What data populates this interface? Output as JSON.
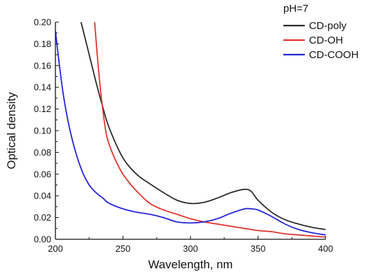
{
  "chart_data": {
    "type": "line",
    "title": "",
    "xlabel": "Wavelength, nm",
    "ylabel": "Optical density",
    "xlim": [
      200,
      400
    ],
    "ylim": [
      0,
      0.2
    ],
    "x_ticks": [
      "200",
      "250",
      "300",
      "350",
      "400"
    ],
    "y_ticks": [
      "0.00",
      "0.02",
      "0.04",
      "0.06",
      "0.08",
      "0.10",
      "0.12",
      "0.14",
      "0.16",
      "0.18",
      "0.20"
    ],
    "grid": false,
    "legend_title": "pH=7",
    "legend_position": "top-right",
    "series": [
      {
        "name": "CD-poly",
        "color": "#2b2b2b",
        "x": [
          219,
          225,
          230,
          235,
          240,
          250,
          260,
          270,
          280,
          290,
          300,
          310,
          320,
          330,
          340,
          345,
          350,
          360,
          370,
          380,
          390,
          400
        ],
        "y": [
          0.2,
          0.17,
          0.145,
          0.122,
          0.102,
          0.075,
          0.06,
          0.051,
          0.043,
          0.036,
          0.033,
          0.034,
          0.038,
          0.043,
          0.046,
          0.044,
          0.036,
          0.025,
          0.018,
          0.014,
          0.011,
          0.009
        ]
      },
      {
        "name": "CD-OH",
        "color": "#e0342c",
        "x": [
          229,
          232,
          235,
          238,
          242,
          246,
          250,
          256,
          262,
          270,
          280,
          290,
          300,
          310,
          320,
          330,
          340,
          350,
          360,
          370,
          380,
          390,
          400
        ],
        "y": [
          0.2,
          0.155,
          0.12,
          0.095,
          0.08,
          0.069,
          0.06,
          0.05,
          0.042,
          0.033,
          0.027,
          0.023,
          0.019,
          0.016,
          0.014,
          0.012,
          0.01,
          0.008,
          0.007,
          0.005,
          0.004,
          0.003,
          0.002
        ]
      },
      {
        "name": "CD-COOH",
        "color": "#2323d8",
        "x": [
          200,
          203,
          206,
          210,
          215,
          220,
          225,
          230,
          235,
          240,
          250,
          260,
          270,
          280,
          290,
          300,
          310,
          320,
          330,
          340,
          345,
          350,
          360,
          370,
          380,
          390,
          400
        ],
        "y": [
          0.192,
          0.16,
          0.132,
          0.105,
          0.08,
          0.062,
          0.05,
          0.043,
          0.038,
          0.033,
          0.028,
          0.025,
          0.023,
          0.02,
          0.016,
          0.015,
          0.016,
          0.019,
          0.024,
          0.028,
          0.028,
          0.027,
          0.021,
          0.014,
          0.009,
          0.006,
          0.004
        ]
      }
    ]
  }
}
